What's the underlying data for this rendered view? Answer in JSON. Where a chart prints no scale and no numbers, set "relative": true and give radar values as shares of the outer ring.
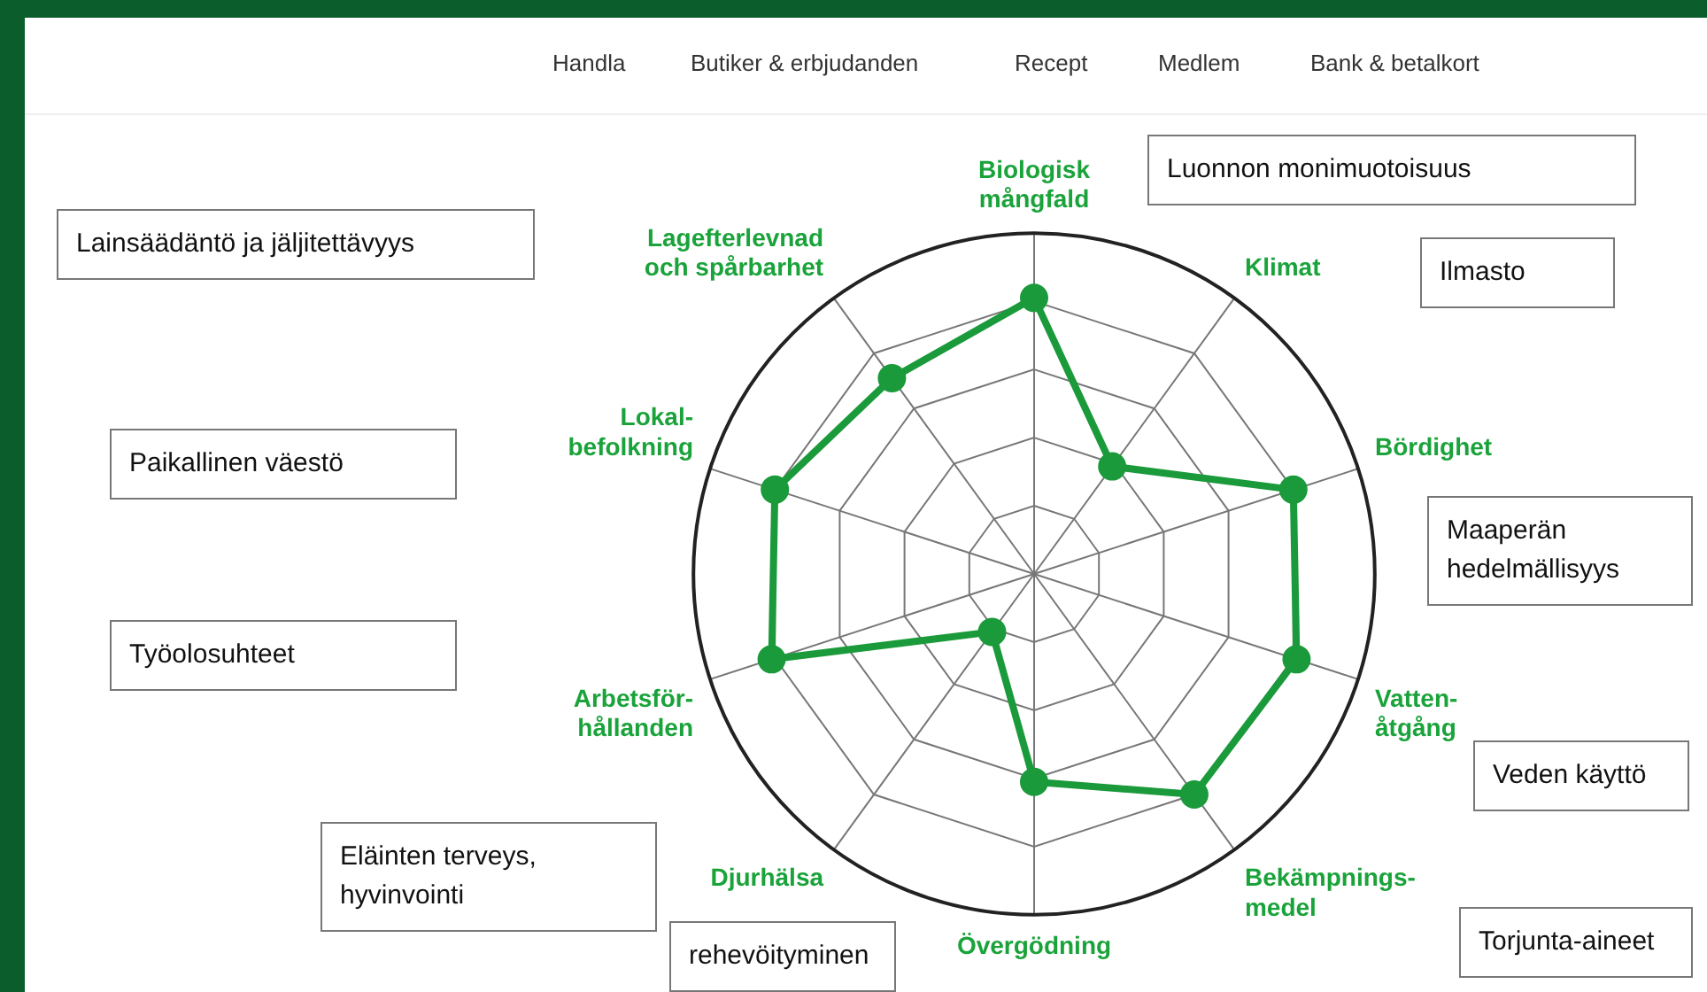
{
  "chart_data": {
    "type": "radar",
    "relative": true,
    "legend": false,
    "marker": "circle",
    "categories": [
      "Biologisk\nmångfald",
      "Klimat",
      "Bördighet",
      "Vatten-\nåtgång",
      "Bekämpnings-\nmedel",
      "Övergödning",
      "Djurhälsa",
      "Arbetsför-\nhållanden",
      "Lokal-\nbefolkning",
      "Lagefterlevnad\noch spårbarhet"
    ],
    "series": [
      {
        "color": "#1a9a3a",
        "values": [
          0.81,
          0.39,
          0.8,
          0.81,
          0.8,
          0.61,
          0.21,
          0.81,
          0.8,
          0.71
        ]
      }
    ],
    "annotations": [
      "Handla",
      "Butiker & erbjudanden",
      "Recept",
      "Medlem",
      "Bank & betalkort",
      "Luonnon monimuotoisuus",
      "Ilmasto",
      "Maaperän hedelmällisyys",
      "Veden käyttö",
      "Torjunta-aineet",
      "rehevöityminen",
      "Eläinten terveys, hyvinvointi",
      "Työolosuhteet",
      "Paikallinen väestö",
      "Lainsäädäntö ja jäljitettävyys"
    ]
  }
}
